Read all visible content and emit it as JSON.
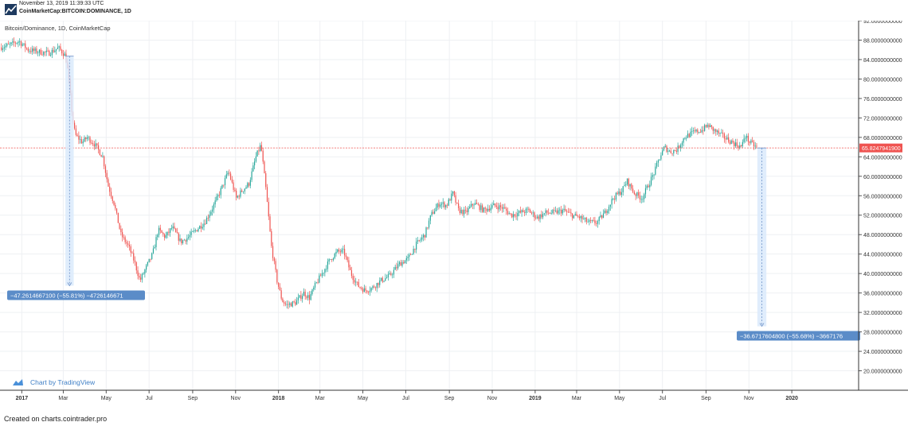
{
  "header": {
    "timestamp": "November 13, 2019 11:39:33 UTC",
    "symbol": "CoinMarketCap:BITCOIN:DOMINANCE, 1D"
  },
  "footer": {
    "text": "Created on charts.cointrader.pro"
  },
  "watermark": {
    "text": "Chart by TradingView"
  },
  "colors": {
    "up": "#26a69a",
    "down": "#ef5350",
    "last_price_line": "#ef5350",
    "measure_fill": "#dbeafb",
    "measure_label": "#5b8cc8",
    "grid": "#eef0f3"
  },
  "chart_data": {
    "type": "candlestick",
    "title": "Bitcoin/Dominance, 1D, CoinMarketCap",
    "timeframe": "1D",
    "x_range": [
      "2016-12-01",
      "2020-04-05"
    ],
    "ylim": [
      16,
      92
    ],
    "y_ticks": [
      "92.0000000000",
      "88.0000000000",
      "84.0000000000",
      "80.0000000000",
      "76.0000000000",
      "72.0000000000",
      "68.0000000000",
      "64.0000000000",
      "60.0000000000",
      "56.0000000000",
      "52.0000000000",
      "48.0000000000",
      "44.0000000000",
      "40.0000000000",
      "36.0000000000",
      "32.0000000000",
      "28.0000000000",
      "24.0000000000",
      "20.0000000000"
    ],
    "x_ticks": [
      {
        "label": "2017",
        "date": "2017-01-01",
        "bold": true
      },
      {
        "label": "Mar",
        "date": "2017-03-01",
        "bold": false
      },
      {
        "label": "May",
        "date": "2017-05-01",
        "bold": false
      },
      {
        "label": "Jul",
        "date": "2017-07-01",
        "bold": false
      },
      {
        "label": "Sep",
        "date": "2017-09-01",
        "bold": false
      },
      {
        "label": "Nov",
        "date": "2017-11-01",
        "bold": false
      },
      {
        "label": "2018",
        "date": "2018-01-01",
        "bold": true
      },
      {
        "label": "Mar",
        "date": "2018-03-01",
        "bold": false
      },
      {
        "label": "May",
        "date": "2018-05-01",
        "bold": false
      },
      {
        "label": "Jul",
        "date": "2018-07-01",
        "bold": false
      },
      {
        "label": "Sep",
        "date": "2018-09-01",
        "bold": false
      },
      {
        "label": "Nov",
        "date": "2018-11-01",
        "bold": false
      },
      {
        "label": "2019",
        "date": "2019-01-01",
        "bold": true
      },
      {
        "label": "Mar",
        "date": "2019-03-01",
        "bold": false
      },
      {
        "label": "May",
        "date": "2019-05-01",
        "bold": false
      },
      {
        "label": "Jul",
        "date": "2019-07-01",
        "bold": false
      },
      {
        "label": "Sep",
        "date": "2019-09-01",
        "bold": false
      },
      {
        "label": "Nov",
        "date": "2019-11-01",
        "bold": false
      },
      {
        "label": "2020",
        "date": "2020-01-01",
        "bold": true
      }
    ],
    "last_price": 65.82479419,
    "last_price_label": "65.8247941900",
    "series": [
      {
        "name": "Bitcoin/Dominance",
        "points": [
          {
            "date": "2016-12-01",
            "v": 86.5
          },
          {
            "date": "2016-12-15",
            "v": 87.0
          },
          {
            "date": "2016-12-28",
            "v": 87.8
          },
          {
            "date": "2017-01-10",
            "v": 86.0
          },
          {
            "date": "2017-01-25",
            "v": 85.6
          },
          {
            "date": "2017-02-08",
            "v": 85.3
          },
          {
            "date": "2017-02-22",
            "v": 86.4
          },
          {
            "date": "2017-03-04",
            "v": 84.8
          },
          {
            "date": "2017-03-08",
            "v": 81.0
          },
          {
            "date": "2017-03-14",
            "v": 72.0
          },
          {
            "date": "2017-03-18",
            "v": 68.5
          },
          {
            "date": "2017-03-28",
            "v": 67.0
          },
          {
            "date": "2017-04-04",
            "v": 68.0
          },
          {
            "date": "2017-04-15",
            "v": 66.5
          },
          {
            "date": "2017-04-26",
            "v": 64.0
          },
          {
            "date": "2017-05-04",
            "v": 58.0
          },
          {
            "date": "2017-05-12",
            "v": 54.5
          },
          {
            "date": "2017-05-22",
            "v": 48.0
          },
          {
            "date": "2017-06-02",
            "v": 45.5
          },
          {
            "date": "2017-06-10",
            "v": 42.5
          },
          {
            "date": "2017-06-18",
            "v": 38.5
          },
          {
            "date": "2017-06-26",
            "v": 41.0
          },
          {
            "date": "2017-07-06",
            "v": 44.0
          },
          {
            "date": "2017-07-14",
            "v": 49.0
          },
          {
            "date": "2017-07-24",
            "v": 47.5
          },
          {
            "date": "2017-08-03",
            "v": 49.5
          },
          {
            "date": "2017-08-15",
            "v": 46.5
          },
          {
            "date": "2017-08-26",
            "v": 47.5
          },
          {
            "date": "2017-09-06",
            "v": 49.0
          },
          {
            "date": "2017-09-18",
            "v": 50.5
          },
          {
            "date": "2017-10-01",
            "v": 54.0
          },
          {
            "date": "2017-10-12",
            "v": 57.5
          },
          {
            "date": "2017-10-22",
            "v": 61.0
          },
          {
            "date": "2017-11-02",
            "v": 55.5
          },
          {
            "date": "2017-11-10",
            "v": 57.0
          },
          {
            "date": "2017-11-20",
            "v": 58.5
          },
          {
            "date": "2017-11-30",
            "v": 64.0
          },
          {
            "date": "2017-12-07",
            "v": 66.5
          },
          {
            "date": "2017-12-14",
            "v": 57.5
          },
          {
            "date": "2017-12-22",
            "v": 45.5
          },
          {
            "date": "2017-12-30",
            "v": 38.5
          },
          {
            "date": "2018-01-06",
            "v": 34.5
          },
          {
            "date": "2018-01-12",
            "v": 33.5
          },
          {
            "date": "2018-01-25",
            "v": 34.0
          },
          {
            "date": "2018-02-06",
            "v": 36.0
          },
          {
            "date": "2018-02-14",
            "v": 35.0
          },
          {
            "date": "2018-02-22",
            "v": 37.5
          },
          {
            "date": "2018-03-06",
            "v": 40.5
          },
          {
            "date": "2018-03-16",
            "v": 43.0
          },
          {
            "date": "2018-03-26",
            "v": 44.5
          },
          {
            "date": "2018-04-04",
            "v": 44.5
          },
          {
            "date": "2018-04-14",
            "v": 40.0
          },
          {
            "date": "2018-04-24",
            "v": 37.5
          },
          {
            "date": "2018-05-04",
            "v": 36.5
          },
          {
            "date": "2018-05-14",
            "v": 37.0
          },
          {
            "date": "2018-05-26",
            "v": 38.5
          },
          {
            "date": "2018-06-08",
            "v": 39.5
          },
          {
            "date": "2018-06-22",
            "v": 42.0
          },
          {
            "date": "2018-07-04",
            "v": 43.0
          },
          {
            "date": "2018-07-16",
            "v": 46.0
          },
          {
            "date": "2018-07-28",
            "v": 48.0
          },
          {
            "date": "2018-08-06",
            "v": 52.0
          },
          {
            "date": "2018-08-18",
            "v": 54.5
          },
          {
            "date": "2018-08-28",
            "v": 54.0
          },
          {
            "date": "2018-09-06",
            "v": 56.5
          },
          {
            "date": "2018-09-14",
            "v": 53.0
          },
          {
            "date": "2018-09-24",
            "v": 52.5
          },
          {
            "date": "2018-10-06",
            "v": 54.5
          },
          {
            "date": "2018-10-20",
            "v": 53.0
          },
          {
            "date": "2018-11-04",
            "v": 54.0
          },
          {
            "date": "2018-11-16",
            "v": 53.5
          },
          {
            "date": "2018-11-28",
            "v": 52.0
          },
          {
            "date": "2018-12-10",
            "v": 52.5
          },
          {
            "date": "2018-12-22",
            "v": 53.0
          },
          {
            "date": "2019-01-04",
            "v": 51.5
          },
          {
            "date": "2019-01-16",
            "v": 52.5
          },
          {
            "date": "2019-01-28",
            "v": 52.5
          },
          {
            "date": "2019-02-10",
            "v": 53.0
          },
          {
            "date": "2019-02-22",
            "v": 52.0
          },
          {
            "date": "2019-03-06",
            "v": 51.5
          },
          {
            "date": "2019-03-18",
            "v": 50.5
          },
          {
            "date": "2019-03-30",
            "v": 50.5
          },
          {
            "date": "2019-04-10",
            "v": 52.5
          },
          {
            "date": "2019-04-22",
            "v": 55.5
          },
          {
            "date": "2019-05-04",
            "v": 57.0
          },
          {
            "date": "2019-05-12",
            "v": 59.0
          },
          {
            "date": "2019-05-22",
            "v": 56.5
          },
          {
            "date": "2019-06-02",
            "v": 55.5
          },
          {
            "date": "2019-06-12",
            "v": 58.5
          },
          {
            "date": "2019-06-20",
            "v": 61.0
          },
          {
            "date": "2019-06-26",
            "v": 63.5
          },
          {
            "date": "2019-07-04",
            "v": 66.0
          },
          {
            "date": "2019-07-12",
            "v": 65.0
          },
          {
            "date": "2019-07-22",
            "v": 65.5
          },
          {
            "date": "2019-08-01",
            "v": 68.0
          },
          {
            "date": "2019-08-14",
            "v": 69.0
          },
          {
            "date": "2019-08-26",
            "v": 69.5
          },
          {
            "date": "2019-09-04",
            "v": 70.5
          },
          {
            "date": "2019-09-12",
            "v": 69.5
          },
          {
            "date": "2019-09-22",
            "v": 68.5
          },
          {
            "date": "2019-10-02",
            "v": 67.5
          },
          {
            "date": "2019-10-14",
            "v": 66.5
          },
          {
            "date": "2019-10-22",
            "v": 66.0
          },
          {
            "date": "2019-10-26",
            "v": 68.5
          },
          {
            "date": "2019-11-02",
            "v": 67.0
          },
          {
            "date": "2019-11-13",
            "v": 65.82
          }
        ]
      }
    ],
    "annotations": [
      {
        "type": "measure",
        "from_date": "2017-03-04",
        "to_date": "2017-03-09",
        "from_value": 84.7,
        "to_value": 37.5,
        "label": "−47.2614667100 (−55.81%) −4726146671"
      },
      {
        "type": "measure",
        "from_date": "2019-11-13",
        "to_date": "2019-11-19",
        "from_value": 65.82,
        "to_value": 29.15,
        "label": "−36.6717604800 (−55.68%) −3667176"
      }
    ]
  }
}
